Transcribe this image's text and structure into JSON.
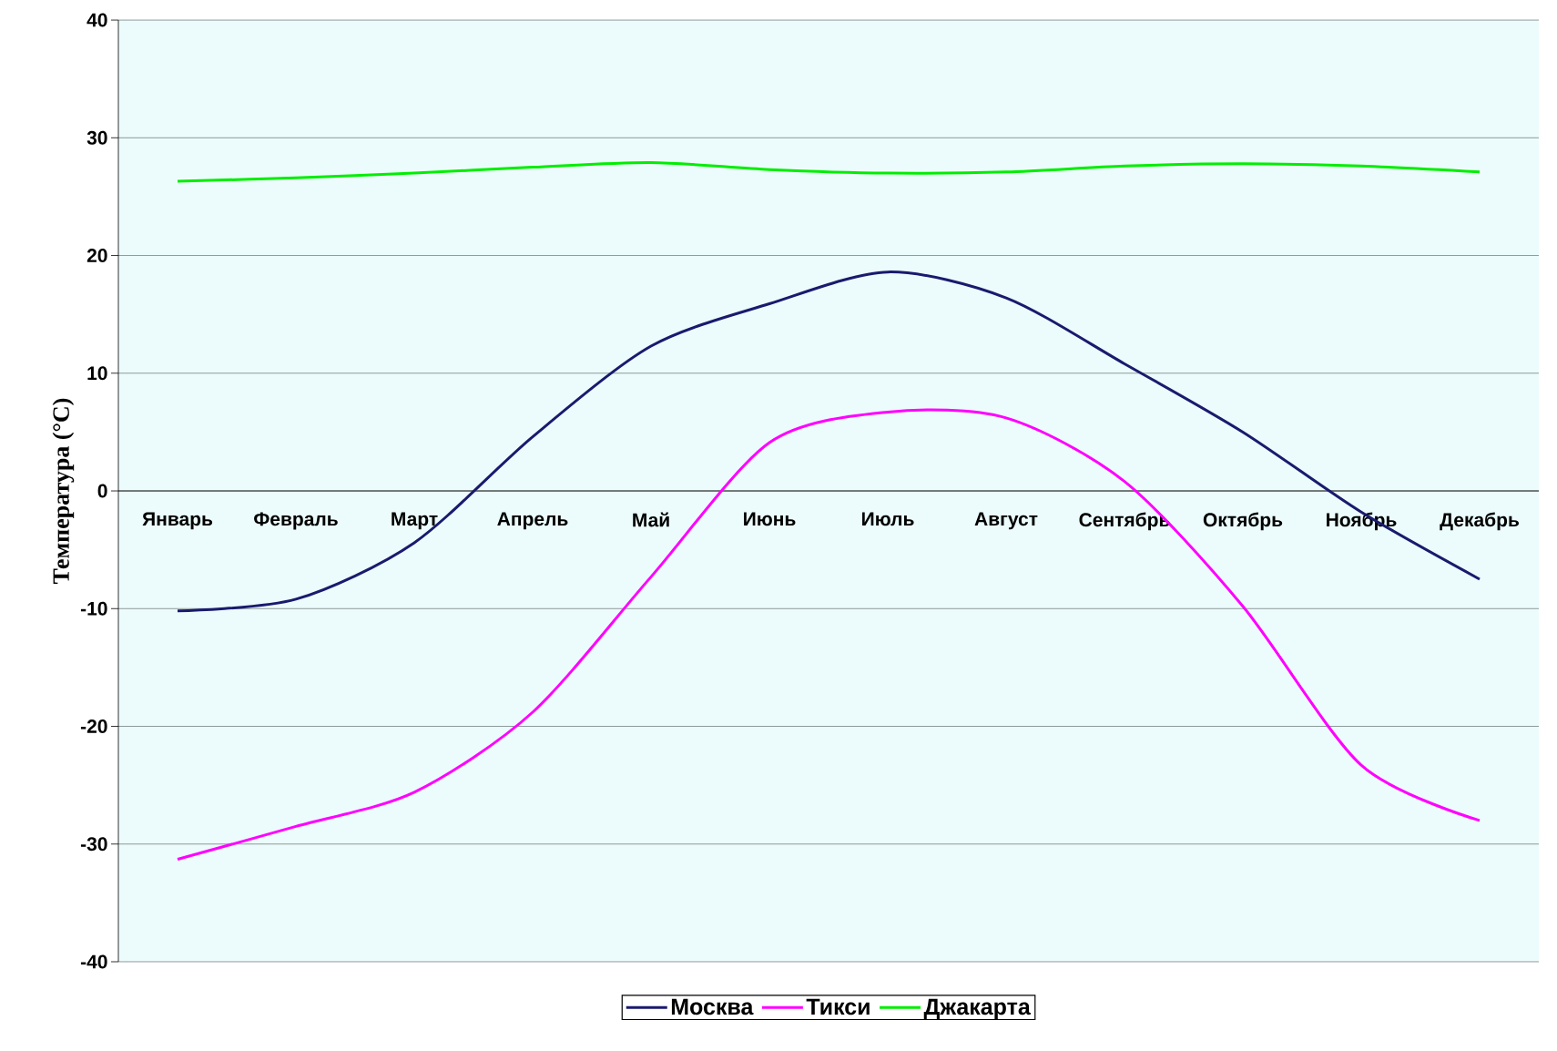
{
  "chart_data": {
    "type": "line",
    "ylabel": "Температура (°C)",
    "categories": [
      "Январь",
      "Февраль",
      "Март",
      "Апрель",
      "Май",
      "Июнь",
      "Июль",
      "Август",
      "Сентябрь",
      "Октябрь",
      "Ноябрь",
      "Декабрь"
    ],
    "series": [
      {
        "name": "Москва",
        "color": "#1a1a6e",
        "values": [
          -10.2,
          -9.2,
          -4.4,
          4.6,
          12.3,
          15.9,
          18.6,
          16.4,
          10.8,
          5.0,
          -1.8,
          -7.5
        ]
      },
      {
        "name": "Тикси",
        "color": "#ff00ff",
        "values": [
          -31.3,
          -28.5,
          -25.6,
          -18.8,
          -7.3,
          4.1,
          6.7,
          6.2,
          0.8,
          -9.8,
          -23.3,
          -28.0
        ]
      },
      {
        "name": "Джакарта",
        "color": "#00ee00",
        "values": [
          26.3,
          26.6,
          27.0,
          27.5,
          27.9,
          27.3,
          27.0,
          27.1,
          27.6,
          27.8,
          27.6,
          27.1
        ]
      }
    ],
    "ylim": [
      -40,
      40
    ],
    "yticks": [
      -40,
      -30,
      -20,
      -10,
      0,
      10,
      20,
      30,
      40
    ],
    "grid": "y",
    "legend": "bottom"
  }
}
